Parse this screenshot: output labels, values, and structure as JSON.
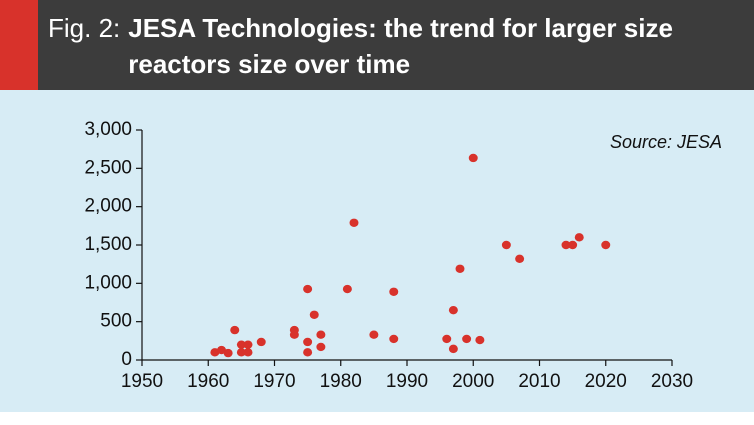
{
  "chart_data": {
    "type": "scatter",
    "title_prefix": "Fig. 2:",
    "title": "JESA Technologies: the trend for larger size reactors size over time",
    "annotation": "Source: JESA",
    "color": "#d8322b",
    "x": [
      1961,
      1962,
      1963,
      1964,
      1965,
      1965,
      1966,
      1966,
      1968,
      1973,
      1973,
      1975,
      1975,
      1975,
      1976,
      1977,
      1977,
      1981,
      1982,
      1985,
      1988,
      1988,
      1996,
      1997,
      1997,
      1998,
      1999,
      2000,
      2001,
      2005,
      2007,
      2014,
      2015,
      2016,
      2020
    ],
    "values": [
      100,
      130,
      90,
      390,
      200,
      100,
      200,
      100,
      235,
      390,
      330,
      925,
      235,
      100,
      590,
      330,
      170,
      925,
      1790,
      330,
      890,
      275,
      275,
      650,
      145,
      1190,
      275,
      2635,
      260,
      1500,
      1320,
      1500,
      1500,
      1600,
      1500
    ],
    "xlim": [
      1950,
      2030
    ],
    "xticks": [
      1950,
      1960,
      1970,
      1980,
      1990,
      2000,
      2010,
      2020,
      2030
    ],
    "ylim": [
      0,
      3000
    ],
    "yticks": [
      0,
      500,
      {
        "value": 1000,
        "label": "1,000"
      },
      {
        "value": 1500,
        "label": "1,500"
      },
      {
        "value": 2000,
        "label": "2,000"
      },
      {
        "value": 2500,
        "label": "2,500"
      },
      {
        "value": 3000,
        "label": "3,000"
      }
    ]
  }
}
